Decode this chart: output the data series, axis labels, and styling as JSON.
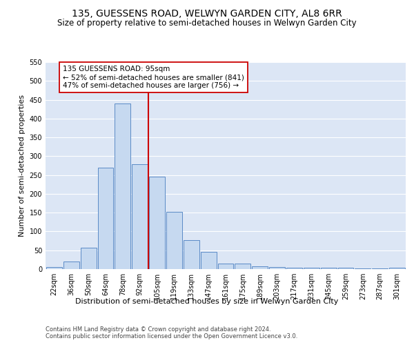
{
  "title": "135, GUESSENS ROAD, WELWYN GARDEN CITY, AL8 6RR",
  "subtitle": "Size of property relative to semi-detached houses in Welwyn Garden City",
  "xlabel": "Distribution of semi-detached houses by size in Welwyn Garden City",
  "ylabel": "Number of semi-detached properties",
  "footnote1": "Contains HM Land Registry data © Crown copyright and database right 2024.",
  "footnote2": "Contains public sector information licensed under the Open Government Licence v3.0.",
  "categories": [
    "22sqm",
    "36sqm",
    "50sqm",
    "64sqm",
    "78sqm",
    "92sqm",
    "105sqm",
    "119sqm",
    "133sqm",
    "147sqm",
    "161sqm",
    "175sqm",
    "189sqm",
    "203sqm",
    "217sqm",
    "231sqm",
    "245sqm",
    "259sqm",
    "273sqm",
    "287sqm",
    "301sqm"
  ],
  "values": [
    5,
    20,
    57,
    270,
    440,
    278,
    245,
    153,
    77,
    45,
    14,
    14,
    7,
    5,
    4,
    3,
    3,
    3,
    1,
    1,
    3
  ],
  "bar_color": "#c6d9f0",
  "bar_edge_color": "#5a8ac6",
  "vline_index": 5,
  "vline_color": "#cc0000",
  "ann_line1": "135 GUESSENS ROAD: 95sqm",
  "ann_line2": "← 52% of semi-detached houses are smaller (841)",
  "ann_line3": "47% of semi-detached houses are larger (756) →",
  "annotation_box_edge_color": "#cc0000",
  "annotation_box_face_color": "#ffffff",
  "ylim": [
    0,
    550
  ],
  "yticks": [
    0,
    50,
    100,
    150,
    200,
    250,
    300,
    350,
    400,
    450,
    500,
    550
  ],
  "background_color": "#dce6f5",
  "grid_color": "#ffffff",
  "title_fontsize": 10,
  "subtitle_fontsize": 8.5,
  "axis_label_fontsize": 8,
  "tick_fontsize": 7,
  "annotation_fontsize": 7.5,
  "footnote_fontsize": 6
}
